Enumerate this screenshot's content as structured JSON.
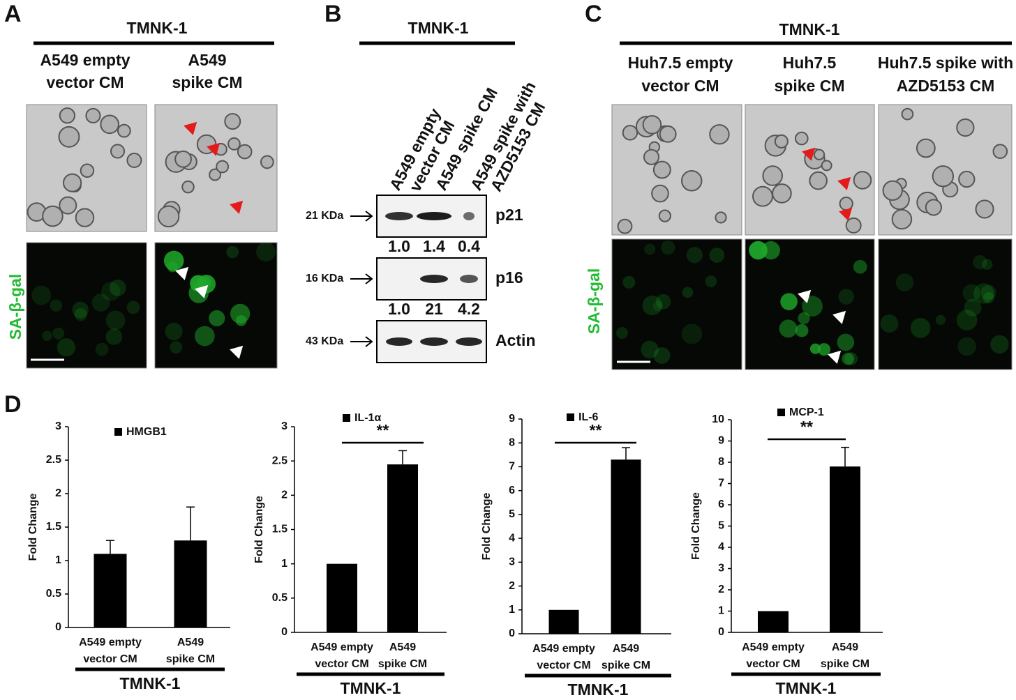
{
  "panels": {
    "A": {
      "label": "A",
      "title": "TMNK-1",
      "columns": [
        [
          "A549 empty",
          "vector CM"
        ],
        [
          "A549",
          "spike CM"
        ]
      ],
      "stain": "SA-β-gal"
    },
    "B": {
      "label": "B",
      "title": "TMNK-1",
      "lanes": [
        [
          "A549 empty",
          "vector CM"
        ],
        [
          "A549 spike CM"
        ],
        [
          "A549 spike with",
          "AZD5153 CM"
        ]
      ],
      "blots": [
        {
          "size": "21 KDa",
          "protein": "p21",
          "quant": [
            "1.0",
            "1.4",
            "0.4"
          ]
        },
        {
          "size": "16 KDa",
          "protein": "p16",
          "quant": [
            "1.0",
            "21",
            "4.2"
          ]
        },
        {
          "size": "43 KDa",
          "protein": "Actin"
        }
      ]
    },
    "C": {
      "label": "C",
      "title": "TMNK-1",
      "columns": [
        [
          "Huh7.5 empty",
          "vector CM"
        ],
        [
          "Huh7.5",
          "spike  CM"
        ],
        [
          "Huh7.5 spike with",
          "AZD5153 CM"
        ]
      ],
      "stain": "SA-β-gal"
    },
    "D": {
      "label": "D"
    }
  },
  "chart_data": [
    {
      "type": "bar",
      "ylabel": "Fold Change",
      "xlabel": "TMNK-1",
      "categories": [
        "A549  empty\nvector CM",
        "A549\nspike CM"
      ],
      "series": [
        {
          "name": "HMGB1",
          "color": "#000000",
          "values": [
            1.1,
            1.3
          ],
          "errors": [
            0.2,
            0.5
          ]
        }
      ],
      "ylim": [
        0,
        3
      ],
      "yticks": [
        0,
        0.5,
        1,
        1.5,
        2,
        2.5,
        3
      ]
    },
    {
      "type": "bar",
      "ylabel": "Fold Change",
      "xlabel": "TMNK-1",
      "categories": [
        "A549  empty\nvector CM",
        "A549\nspike CM"
      ],
      "series": [
        {
          "name": "IL-1α",
          "color": "#000000",
          "values": [
            1,
            2.45
          ],
          "errors": [
            null,
            0.2
          ]
        }
      ],
      "annotation": "**",
      "ylim": [
        0,
        3
      ],
      "yticks": [
        0,
        0.5,
        1,
        1.5,
        2,
        2.5,
        3
      ]
    },
    {
      "type": "bar",
      "ylabel": "Fold Change",
      "xlabel": "TMNK-1",
      "categories": [
        "A549  empty\nvector CM",
        "A549\nspike CM"
      ],
      "series": [
        {
          "name": "IL-6",
          "color": "#000000",
          "values": [
            1,
            7.3
          ],
          "errors": [
            null,
            0.5
          ]
        }
      ],
      "annotation": "**",
      "ylim": [
        0,
        9
      ],
      "yticks": [
        0,
        1,
        2,
        3,
        4,
        5,
        6,
        7,
        8,
        9
      ]
    },
    {
      "type": "bar",
      "ylabel": "Fold Change",
      "xlabel": "TMNK-1",
      "categories": [
        "A549  empty\nvector CM",
        "A549\nspike CM"
      ],
      "series": [
        {
          "name": "MCP-1",
          "color": "#000000",
          "values": [
            1,
            7.8
          ],
          "errors": [
            null,
            0.9
          ]
        }
      ],
      "annotation": "**",
      "ylim": [
        0,
        10
      ],
      "yticks": [
        0,
        1,
        2,
        3,
        4,
        5,
        6,
        7,
        8,
        9,
        10
      ]
    }
  ]
}
